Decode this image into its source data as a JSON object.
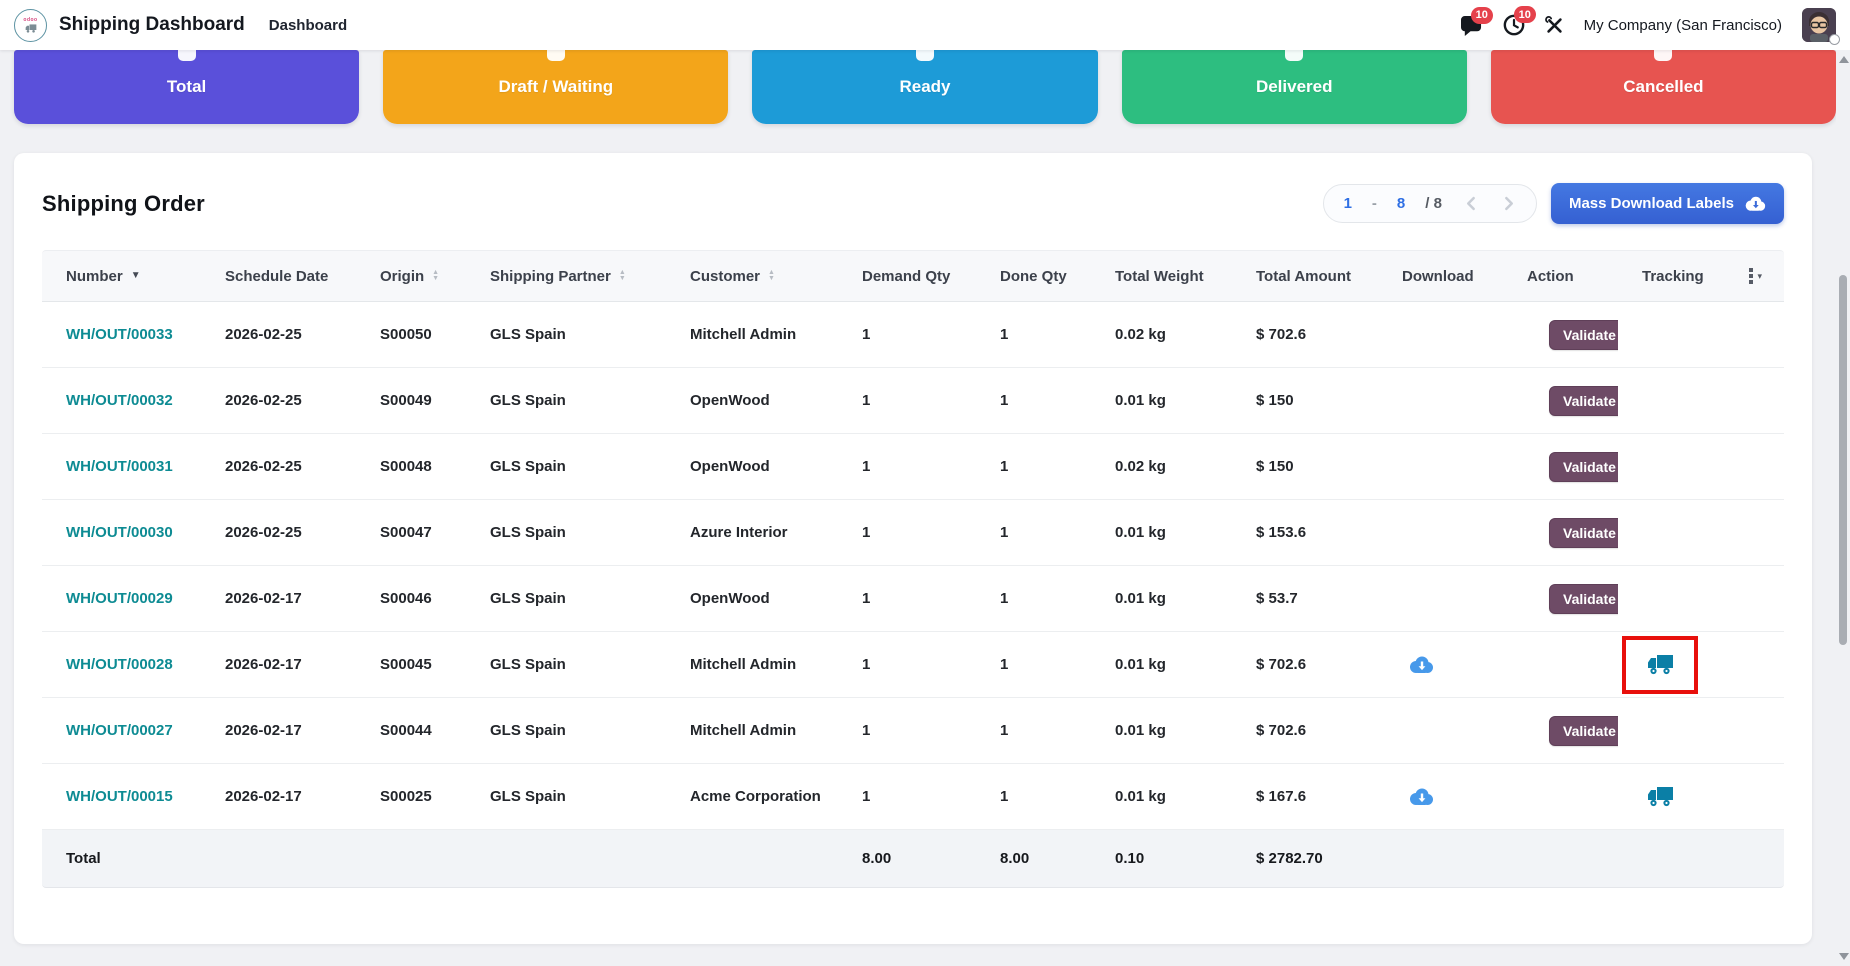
{
  "topbar": {
    "app_title": "Shipping Dashboard",
    "menu": {
      "dashboard": "Dashboard"
    },
    "messages_badge": "10",
    "activities_badge": "10",
    "company": "My Company (San Francisco)"
  },
  "stat_cards": [
    {
      "label": "Total",
      "color": "#5a50da"
    },
    {
      "label": "Draft / Waiting",
      "color": "#f3a51a"
    },
    {
      "label": "Ready",
      "color": "#1d9bd7"
    },
    {
      "label": "Delivered",
      "color": "#2dbe80"
    },
    {
      "label": "Cancelled",
      "color": "#e75450"
    }
  ],
  "panel": {
    "title": "Shipping Order",
    "pager": {
      "page_start": "1",
      "separator": "-",
      "page_end": "8",
      "total": "/ 8"
    },
    "mass_download_label": "Mass Download Labels"
  },
  "table": {
    "columns": [
      {
        "label": "Number",
        "sort": "desc"
      },
      {
        "label": "Schedule Date",
        "sort": null
      },
      {
        "label": "Origin",
        "sort": "both"
      },
      {
        "label": "Shipping Partner",
        "sort": "both"
      },
      {
        "label": "Customer",
        "sort": "both"
      },
      {
        "label": "Demand Qty",
        "sort": null
      },
      {
        "label": "Done Qty",
        "sort": null
      },
      {
        "label": "Total Weight",
        "sort": null
      },
      {
        "label": "Total Amount",
        "sort": null
      },
      {
        "label": "Download",
        "sort": null
      },
      {
        "label": "Action",
        "sort": null
      },
      {
        "label": "Tracking",
        "sort": null
      }
    ],
    "rows": [
      {
        "number": "WH/OUT/00033",
        "schedule_date": "2026-02-25",
        "origin": "S00050",
        "shipping_partner": "GLS Spain",
        "customer": "Mitchell Admin",
        "demand_qty": "1",
        "done_qty": "1",
        "total_weight": "0.02 kg",
        "total_amount": "$ 702.6",
        "download": false,
        "action": "Validate",
        "tracking": false,
        "tracking_highlight": false
      },
      {
        "number": "WH/OUT/00032",
        "schedule_date": "2026-02-25",
        "origin": "S00049",
        "shipping_partner": "GLS Spain",
        "customer": "OpenWood",
        "demand_qty": "1",
        "done_qty": "1",
        "total_weight": "0.01 kg",
        "total_amount": "$ 150",
        "download": false,
        "action": "Validate",
        "tracking": false,
        "tracking_highlight": false
      },
      {
        "number": "WH/OUT/00031",
        "schedule_date": "2026-02-25",
        "origin": "S00048",
        "shipping_partner": "GLS Spain",
        "customer": "OpenWood",
        "demand_qty": "1",
        "done_qty": "1",
        "total_weight": "0.02 kg",
        "total_amount": "$ 150",
        "download": false,
        "action": "Validate",
        "tracking": false,
        "tracking_highlight": false
      },
      {
        "number": "WH/OUT/00030",
        "schedule_date": "2026-02-25",
        "origin": "S00047",
        "shipping_partner": "GLS Spain",
        "customer": "Azure Interior",
        "demand_qty": "1",
        "done_qty": "1",
        "total_weight": "0.01 kg",
        "total_amount": "$ 153.6",
        "download": false,
        "action": "Validate",
        "tracking": false,
        "tracking_highlight": false
      },
      {
        "number": "WH/OUT/00029",
        "schedule_date": "2026-02-17",
        "origin": "S00046",
        "shipping_partner": "GLS Spain",
        "customer": "OpenWood",
        "demand_qty": "1",
        "done_qty": "1",
        "total_weight": "0.01 kg",
        "total_amount": "$ 53.7",
        "download": false,
        "action": "Validate",
        "tracking": false,
        "tracking_highlight": false
      },
      {
        "number": "WH/OUT/00028",
        "schedule_date": "2026-02-17",
        "origin": "S00045",
        "shipping_partner": "GLS Spain",
        "customer": "Mitchell Admin",
        "demand_qty": "1",
        "done_qty": "1",
        "total_weight": "0.01 kg",
        "total_amount": "$ 702.6",
        "download": true,
        "action": null,
        "tracking": true,
        "tracking_highlight": true
      },
      {
        "number": "WH/OUT/00027",
        "schedule_date": "2026-02-17",
        "origin": "S00044",
        "shipping_partner": "GLS Spain",
        "customer": "Mitchell Admin",
        "demand_qty": "1",
        "done_qty": "1",
        "total_weight": "0.01 kg",
        "total_amount": "$ 702.6",
        "download": false,
        "action": "Validate",
        "tracking": false,
        "tracking_highlight": false
      },
      {
        "number": "WH/OUT/00015",
        "schedule_date": "2026-02-17",
        "origin": "S00025",
        "shipping_partner": "GLS Spain",
        "customer": "Acme Corporation",
        "demand_qty": "1",
        "done_qty": "1",
        "total_weight": "0.01 kg",
        "total_amount": "$ 167.6",
        "download": true,
        "action": null,
        "tracking": true,
        "tracking_highlight": false
      }
    ],
    "total_row": {
      "label": "Total",
      "demand_qty": "8.00",
      "done_qty": "8.00",
      "total_weight": "0.10",
      "total_amount": "$ 2782.70"
    }
  },
  "colors": {
    "link_teal": "#0d8b93",
    "validate_button": "#6e4b66",
    "primary_button": "#3c6bd9",
    "pager_link": "#2f6fe4",
    "badge_red": "#e5414b",
    "download_icon": "#4799ea",
    "truck_icon": "#0b7fa6",
    "highlight_box": "#e8100c"
  },
  "icons": {
    "logo": "delivery-truck-logo",
    "messages": "chat-bubble-icon",
    "activities": "clock-icon",
    "tools": "crossed-tools-icon",
    "pager_prev": "chevron-left-icon",
    "pager_next": "chevron-right-icon",
    "mass_download": "cloud-download-icon",
    "download": "cloud-download-icon",
    "tracking": "truck-icon",
    "column_options": "column-options-dots-icon"
  }
}
